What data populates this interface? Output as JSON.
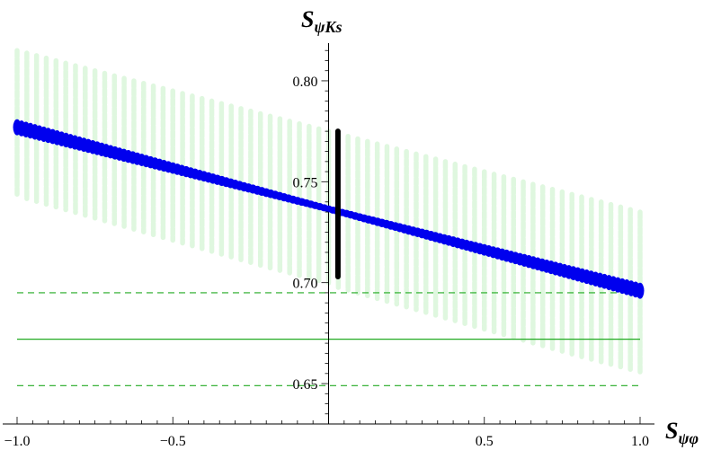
{
  "chart_data": {
    "type": "scatter",
    "title": "",
    "xlabel": {
      "main": "S",
      "sub": "ψφ"
    },
    "ylabel": {
      "main": "S",
      "sub": "ψKs"
    },
    "xlim": [
      -1.0,
      1.0
    ],
    "ylim": [
      0.63,
      0.82
    ],
    "x_axis_crossing_y": 0.63,
    "y_axis_crossing_x": 0.0,
    "xticks": [
      -1.0,
      -0.5,
      0.5,
      1.0
    ],
    "xtick_labels": [
      "−1.0",
      "−0.5",
      "0.5",
      "1.0"
    ],
    "yticks": [
      0.65,
      0.7,
      0.75,
      0.8
    ],
    "ytick_labels": [
      "0.65",
      "0.70",
      "0.75",
      "0.80"
    ],
    "grid": false,
    "legend": "none",
    "series": [
      {
        "kind": "band",
        "color": "#dff7df",
        "x": [
          -1.0,
          1.0
        ],
        "upper": [
          0.815,
          0.735
        ],
        "lower": [
          0.743,
          0.655
        ]
      },
      {
        "kind": "line",
        "color": "#0000ee",
        "x": [
          -1.0,
          1.0
        ],
        "y": [
          0.777,
          0.696
        ],
        "thickness_at_ends": [
          0.006,
          0.006
        ],
        "thickness_at_center": 0.0015
      },
      {
        "kind": "segment",
        "color": "#000000",
        "x": [
          0.03,
          0.03
        ],
        "y": [
          0.703,
          0.775
        ]
      }
    ],
    "reference_lines": [
      {
        "y": 0.695,
        "style": "dashed",
        "color": "#22aa22"
      },
      {
        "y": 0.672,
        "style": "solid",
        "color": "#22aa22"
      },
      {
        "y": 0.649,
        "style": "dashed",
        "color": "#22aa22"
      }
    ]
  }
}
